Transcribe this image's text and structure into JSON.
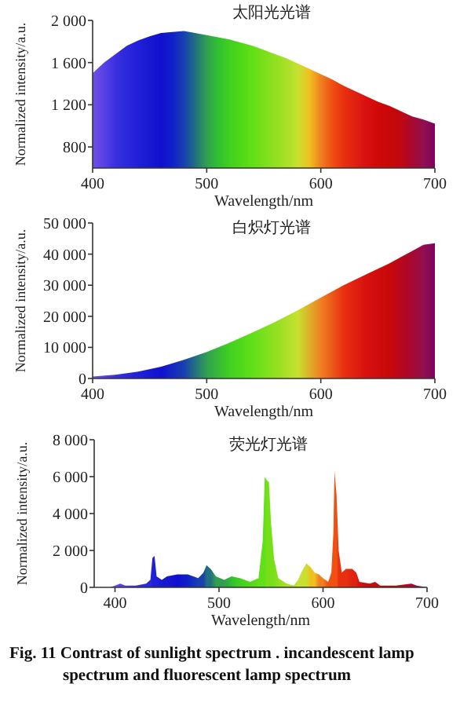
{
  "chart_data": [
    {
      "type": "area",
      "title": "太阳光光谱",
      "xlabel": "Wavelength/nm",
      "ylabel": "Normalized intensity/a.u.",
      "xlim": [
        400,
        700
      ],
      "xticks": [
        400,
        500,
        600,
        700
      ],
      "ylim": [
        600,
        2000
      ],
      "yticks": [
        {
          "value": 800,
          "label": "800"
        },
        {
          "value": 1200,
          "label": "1 200"
        },
        {
          "value": 1600,
          "label": "1 600"
        },
        {
          "value": 2000,
          "label": "2 000"
        }
      ],
      "series": [
        {
          "x": [
            400,
            410,
            420,
            430,
            440,
            450,
            460,
            470,
            480,
            490,
            500,
            510,
            520,
            530,
            540,
            550,
            560,
            570,
            580,
            590,
            600,
            610,
            620,
            630,
            640,
            650,
            660,
            670,
            680,
            690,
            700
          ],
          "values": [
            1500,
            1600,
            1680,
            1760,
            1810,
            1850,
            1880,
            1890,
            1900,
            1880,
            1860,
            1840,
            1820,
            1790,
            1760,
            1720,
            1680,
            1640,
            1590,
            1540,
            1490,
            1440,
            1380,
            1330,
            1280,
            1230,
            1190,
            1140,
            1090,
            1060,
            1020
          ],
          "colors": [
            "#7050e8",
            "#5a40e6",
            "#3a30e0",
            "#2a28dc",
            "#2020d8",
            "#1818d0",
            "#1010d0",
            "#1020c8",
            "#1840b0",
            "#207080",
            "#30a050",
            "#30c030",
            "#40d020",
            "#50d818",
            "#60e018",
            "#78e018",
            "#90e020",
            "#a8e028",
            "#c8e030",
            "#f0c020",
            "#f08020",
            "#f05010",
            "#e83010",
            "#e02010",
            "#d81010",
            "#d00808",
            "#c80808",
            "#c00810",
            "#a80830",
            "#901050",
            "#800060"
          ]
        }
      ]
    },
    {
      "type": "area",
      "title": "白炽灯光谱",
      "xlabel": "Wavelength/nm",
      "ylabel": "Normalized intensity/a.u.",
      "xlim": [
        400,
        700
      ],
      "xticks": [
        400,
        500,
        600,
        700
      ],
      "ylim": [
        0,
        50000
      ],
      "yticks": [
        0,
        {
          "value": 10000,
          "label": "10 000"
        },
        {
          "value": 20000,
          "label": "20 000"
        },
        {
          "value": 30000,
          "label": "30 000"
        },
        {
          "value": 40000,
          "label": "40 000"
        },
        {
          "value": 50000,
          "label": "50 000"
        }
      ],
      "series": [
        {
          "x": [
            400,
            420,
            440,
            460,
            480,
            500,
            520,
            540,
            560,
            580,
            600,
            620,
            640,
            660,
            680,
            690,
            700
          ],
          "values": [
            600,
            1200,
            2200,
            3800,
            6000,
            8500,
            11500,
            14800,
            18200,
            22000,
            26000,
            30000,
            33500,
            37000,
            41000,
            43000,
            43500
          ],
          "colors": [
            "#7050e8",
            "#3a30e0",
            "#2020d8",
            "#1010d0",
            "#1840b0",
            "#30a050",
            "#40d020",
            "#60e018",
            "#90e020",
            "#c8e030",
            "#f08020",
            "#e83010",
            "#d81010",
            "#c80808",
            "#a80830",
            "#901050",
            "#800060"
          ]
        }
      ]
    },
    {
      "type": "area",
      "title": "荧光灯光谱",
      "xlabel": "Wavelength/nm",
      "ylabel": "Normalized intensity/a.u.",
      "xlim": [
        380,
        700
      ],
      "xticks": [
        400,
        500,
        600,
        700
      ],
      "ylim": [
        0,
        8000
      ],
      "yticks": [
        0,
        {
          "value": 2000,
          "label": "2 000"
        },
        {
          "value": 4000,
          "label": "4 000"
        },
        {
          "value": 6000,
          "label": "6 000"
        },
        {
          "value": 8000,
          "label": "8 000"
        }
      ],
      "annotations": [
        "Fig. 11    Contrast of sunlight spectrum . incandescent lamp spectrum and fluorescent lamp spectrum"
      ],
      "series": [
        {
          "x": [
            395,
            400,
            405,
            410,
            420,
            430,
            434,
            436,
            438,
            440,
            445,
            450,
            460,
            470,
            480,
            485,
            488,
            492,
            497,
            505,
            512,
            520,
            530,
            538,
            542,
            544,
            546,
            548,
            550,
            553,
            557,
            565,
            572,
            576,
            580,
            584,
            588,
            592,
            596,
            600,
            605,
            608,
            610,
            611,
            613,
            615,
            618,
            622,
            628,
            632,
            635,
            645,
            650,
            655,
            670,
            685,
            690,
            700
          ],
          "values": [
            0,
            100,
            200,
            100,
            100,
            200,
            400,
            1600,
            1700,
            600,
            400,
            600,
            700,
            700,
            500,
            800,
            1200,
            1000,
            600,
            400,
            600,
            500,
            300,
            500,
            2500,
            6000,
            5800,
            5700,
            3500,
            1500,
            500,
            200,
            100,
            400,
            900,
            1300,
            1100,
            800,
            700,
            500,
            300,
            800,
            3000,
            6300,
            5000,
            2000,
            800,
            1000,
            1000,
            800,
            300,
            200,
            300,
            100,
            100,
            200,
            100,
            0
          ],
          "colors": [
            "#7050e8",
            "#7050e8",
            "#5a40e6",
            "#5a40e6",
            "#3a30e0",
            "#2a28dc",
            "#2a28dc",
            "#2020d8",
            "#2020d8",
            "#2020d8",
            "#1818d0",
            "#1818d0",
            "#1010d0",
            "#1020c8",
            "#1840b0",
            "#1840b0",
            "#207080",
            "#207080",
            "#30a050",
            "#30a050",
            "#30c030",
            "#40d020",
            "#50d818",
            "#60e018",
            "#60e018",
            "#60e018",
            "#78e018",
            "#78e018",
            "#78e018",
            "#78e018",
            "#90e020",
            "#a8e028",
            "#a8e028",
            "#c8e030",
            "#c8e030",
            "#c8e030",
            "#f0c020",
            "#f0c020",
            "#f08020",
            "#f08020",
            "#f05010",
            "#f05010",
            "#f05010",
            "#f05010",
            "#f05010",
            "#e83010",
            "#e83010",
            "#e83010",
            "#e02010",
            "#e02010",
            "#d81010",
            "#d00808",
            "#d00808",
            "#c80808",
            "#c00810",
            "#a80830",
            "#901050",
            "#800060"
          ]
        }
      ]
    }
  ]
}
